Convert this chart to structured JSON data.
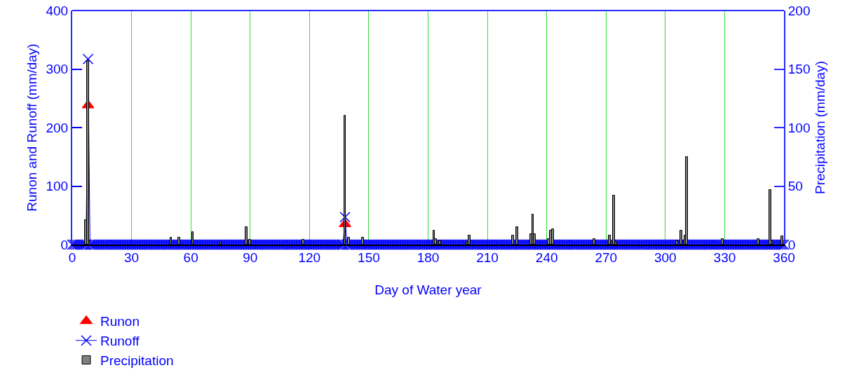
{
  "chart_data": {
    "type": "line",
    "xlabel": "Day of Water year",
    "ylabel": "Runon and Runoff (mm/day)",
    "y2label": "Precipitation (mm/day)",
    "xlim": [
      0,
      360
    ],
    "xticks": [
      0,
      30,
      60,
      90,
      120,
      150,
      180,
      210,
      240,
      270,
      300,
      330,
      360
    ],
    "ylim": [
      0,
      400
    ],
    "yticks": [
      0,
      100,
      200,
      300,
      400
    ],
    "y2lim": [
      0,
      200
    ],
    "y2ticks": [
      0,
      50,
      100,
      150,
      200
    ],
    "grid": "x",
    "legend": "bottom left",
    "x": [
      0,
      1,
      2,
      3,
      4,
      5,
      6,
      7,
      8,
      9,
      10,
      11,
      12,
      13,
      14,
      15,
      16,
      17,
      18,
      19,
      20,
      21,
      22,
      23,
      24,
      25,
      26,
      27,
      28,
      29,
      30,
      31,
      32,
      33,
      34,
      35,
      36,
      37,
      38,
      39,
      40,
      41,
      42,
      43,
      44,
      45,
      46,
      47,
      48,
      49,
      50,
      51,
      52,
      53,
      54,
      55,
      56,
      57,
      58,
      59,
      60,
      61,
      62,
      63,
      64,
      65,
      66,
      67,
      68,
      69,
      70,
      71,
      72,
      73,
      74,
      75,
      76,
      77,
      78,
      79,
      80,
      81,
      82,
      83,
      84,
      85,
      86,
      87,
      88,
      89,
      90,
      91,
      92,
      93,
      94,
      95,
      96,
      97,
      98,
      99,
      100,
      101,
      102,
      103,
      104,
      105,
      106,
      107,
      108,
      109,
      110,
      111,
      112,
      113,
      114,
      115,
      116,
      117,
      118,
      119,
      120,
      121,
      122,
      123,
      124,
      125,
      126,
      127,
      128,
      129,
      130,
      131,
      132,
      133,
      134,
      135,
      136,
      137,
      138,
      139,
      140,
      141,
      142,
      143,
      144,
      145,
      146,
      147,
      148,
      149,
      150,
      151,
      152,
      153,
      154,
      155,
      156,
      157,
      158,
      159,
      160,
      161,
      162,
      163,
      164,
      165,
      166,
      167,
      168,
      169,
      170,
      171,
      172,
      173,
      174,
      175,
      176,
      177,
      178,
      179,
      180,
      181,
      182,
      183,
      184,
      185,
      186,
      187,
      188,
      189,
      190,
      191,
      192,
      193,
      194,
      195,
      196,
      197,
      198,
      199,
      200,
      201,
      202,
      203,
      204,
      205,
      206,
      207,
      208,
      209,
      210,
      211,
      212,
      213,
      214,
      215,
      216,
      217,
      218,
      219,
      220,
      221,
      222,
      223,
      224,
      225,
      226,
      227,
      228,
      229,
      230,
      231,
      232,
      233,
      234,
      235,
      236,
      237,
      238,
      239,
      240,
      241,
      242,
      243,
      244,
      245,
      246,
      247,
      248,
      249,
      250,
      251,
      252,
      253,
      254,
      255,
      256,
      257,
      258,
      259,
      260,
      261,
      262,
      263,
      264,
      265,
      266,
      267,
      268,
      269,
      270,
      271,
      272,
      273,
      274,
      275,
      276,
      277,
      278,
      279,
      280,
      281,
      282,
      283,
      284,
      285,
      286,
      287,
      288,
      289,
      290,
      291,
      292,
      293,
      294,
      295,
      296,
      297,
      298,
      299,
      300,
      301,
      302,
      303,
      304,
      305,
      306,
      307,
      308,
      309,
      310,
      311,
      312,
      313,
      314,
      315,
      316,
      317,
      318,
      319,
      320,
      321,
      322,
      323,
      324,
      325,
      326,
      327,
      328,
      329,
      330,
      331,
      332,
      333,
      334,
      335,
      336,
      337,
      338,
      339,
      340,
      341,
      342,
      343,
      344,
      345,
      346,
      347,
      348,
      349,
      350,
      351,
      352,
      353,
      354,
      355,
      356,
      357,
      358,
      359,
      360
    ],
    "series": [
      {
        "name": "Runon",
        "type": "scatter",
        "color": "#ff0000",
        "marker": "triangle",
        "x": [
          8,
          138
        ],
        "values": [
          238,
          35
        ]
      },
      {
        "name": "Runoff",
        "color": "#0000ff",
        "marker": "cross",
        "values": [
          0,
          0,
          0,
          0,
          0,
          0,
          0,
          0,
          317,
          0,
          0,
          0,
          0,
          0,
          0,
          0,
          0,
          0,
          0,
          0,
          0,
          0,
          0,
          0,
          0,
          0,
          0,
          0,
          0,
          0,
          0,
          0,
          0,
          0,
          0,
          0,
          0,
          0,
          0,
          0,
          0,
          0,
          0,
          0,
          0,
          0,
          0,
          0,
          0,
          0,
          0,
          0,
          0,
          0,
          0,
          0,
          0,
          0,
          0,
          0,
          0,
          0,
          0,
          0,
          0,
          0,
          0,
          0,
          0,
          0,
          0,
          0,
          0,
          0,
          0,
          0,
          0,
          0,
          0,
          0,
          0,
          0,
          0,
          0,
          0,
          0,
          0,
          0,
          0,
          0,
          0,
          0,
          0,
          0,
          0,
          0,
          0,
          0,
          0,
          0,
          0,
          0,
          0,
          0,
          0,
          0,
          0,
          0,
          0,
          0,
          0,
          0,
          0,
          0,
          0,
          0,
          0,
          0,
          0,
          0,
          0,
          0,
          0,
          0,
          0,
          0,
          0,
          0,
          0,
          0,
          0,
          0,
          0,
          0,
          0,
          0,
          0,
          0,
          47,
          0,
          0,
          0,
          0,
          0,
          0,
          0,
          0,
          0,
          0,
          0,
          0,
          0,
          0,
          0,
          0,
          0,
          0,
          0,
          0,
          0,
          0,
          0,
          0,
          0,
          0,
          0,
          0,
          0,
          0,
          0,
          0,
          0,
          0,
          0,
          0,
          0,
          0,
          0,
          0,
          0,
          0,
          0,
          0,
          0,
          0,
          0,
          0,
          0,
          0,
          0,
          0,
          0,
          0,
          0,
          0,
          0,
          0,
          0,
          0,
          0,
          0,
          0,
          0,
          0,
          0,
          0,
          0,
          0,
          0,
          0,
          0,
          0,
          0,
          0,
          0,
          0,
          0,
          0,
          0,
          0,
          0,
          0,
          0,
          0,
          0,
          0,
          0,
          0,
          0,
          0,
          0,
          0,
          0,
          0,
          0,
          0,
          0,
          0,
          0,
          0,
          0,
          0,
          0,
          0,
          0,
          0,
          0,
          0,
          0,
          0,
          0,
          0,
          0,
          0,
          0,
          0,
          0,
          0,
          0,
          0,
          0,
          0,
          0,
          0,
          0,
          0,
          0,
          0,
          0,
          0,
          0,
          0,
          0,
          0,
          0,
          0,
          0,
          0,
          0,
          0,
          0,
          0,
          0,
          0,
          0,
          0,
          0,
          0,
          0,
          0,
          0,
          0,
          0,
          0,
          0,
          0,
          0,
          0,
          0,
          0,
          0,
          0,
          0,
          0,
          0,
          0,
          0,
          0,
          0,
          0,
          0,
          0,
          0,
          0,
          0,
          0,
          0,
          0,
          0,
          0,
          0,
          0,
          0,
          0,
          0,
          0,
          0,
          0,
          0,
          0,
          0,
          0,
          0,
          0,
          0,
          0,
          0,
          0,
          0,
          0,
          0,
          0,
          0,
          0,
          0,
          0,
          0,
          0,
          0,
          0,
          0,
          0,
          0,
          0,
          0,
          0,
          0,
          0,
          0,
          0,
          0
        ]
      },
      {
        "name": "Precipitation",
        "type": "bar",
        "axis": "y2",
        "color": "#808080",
        "x": [
          7,
          8,
          50,
          54,
          61,
          75,
          88,
          90,
          117,
          138,
          140,
          147,
          183,
          184,
          186,
          200,
          201,
          223,
          225,
          232,
          233,
          234,
          241,
          242,
          243,
          264,
          272,
          274,
          275,
          306,
          308,
          310,
          311,
          329,
          347,
          353,
          354,
          359
        ],
        "values": [
          21,
          157,
          6,
          6,
          11,
          2,
          15,
          4,
          4,
          110,
          6,
          6,
          12,
          5,
          3,
          2,
          8,
          8,
          15,
          9,
          26,
          9,
          5,
          12,
          13,
          5,
          8,
          42,
          2,
          3,
          12,
          8,
          75,
          5,
          5,
          47,
          3,
          7
        ]
      }
    ]
  }
}
